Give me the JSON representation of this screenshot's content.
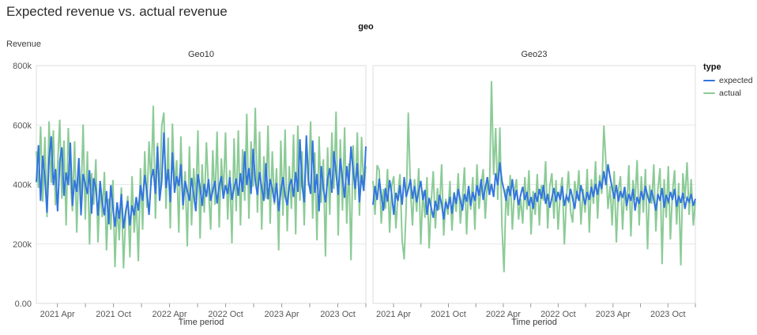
{
  "title": "Expected revenue vs. actual revenue",
  "legend": {
    "title": "type"
  },
  "colors": {
    "expected": "#3376de",
    "actual": "#8ccb97",
    "grid": "#e8e8e8",
    "border": "#dcdcdc",
    "tick": "#999999",
    "tick_label": "#565656"
  },
  "chart_data": {
    "type": "line",
    "title": "Expected revenue vs. actual revenue",
    "facet_field": "geo",
    "xlabel": "Time period",
    "ylabel": "Revenue",
    "x": {
      "start": "2021-01",
      "end": "2023-12",
      "interval": "weekly",
      "tick_labels": [
        "2021 Apr",
        "2021 Oct",
        "2022 Apr",
        "2022 Oct",
        "2023 Apr",
        "2023 Oct"
      ],
      "labeled_tick_months": [
        3,
        9,
        15,
        21,
        27,
        33
      ],
      "minor_tick_months": [
        6,
        12,
        18,
        24,
        30,
        36
      ]
    },
    "y": {
      "lim": [
        0,
        800000
      ],
      "tick_values": [
        0,
        200,
        400,
        600,
        800
      ],
      "tick_labels": [
        "0.00",
        "200k",
        "400k",
        "600k",
        "800k"
      ]
    },
    "values_unit": "thousands",
    "legend_position": "top-right",
    "grid": true,
    "panels": [
      {
        "name": "Geo10",
        "series": [
          {
            "name": "expected",
            "color": "#3376de",
            "values": [
              408,
              532,
              345,
              497,
              421,
              305,
              486,
              562,
              398,
              452,
              310,
              478,
              525,
              362,
              440,
              398,
              541,
              328,
              415,
              375,
              489,
              296,
              435,
              402,
              368,
              448,
              302,
              421,
              388,
              295,
              412,
              340,
              296,
              378,
              266,
              398,
              322,
              258,
              340,
              284,
              368,
              252,
              310,
              345,
              262,
              330,
              296,
              358,
              312,
              398,
              345,
              432,
              376,
              298,
              418,
              452,
              368,
              528,
              345,
              412,
              575,
              388,
              452,
              340,
              508,
              372,
              428,
              395,
              468,
              330,
              412,
              378,
              345,
              422,
              368,
              310,
              435,
              390,
              328,
              402,
              358,
              418,
              345,
              380,
              412,
              336,
              395,
              428,
              352,
              398,
              368,
              425,
              348,
              390,
              420,
              362,
              438,
              375,
              512,
              398,
              455,
              368,
              520,
              412,
              365,
              442,
              388,
              345,
              472,
              350,
              418,
              385,
              340,
              405,
              310,
              378,
              425,
              362,
              330,
              395,
              418,
              358,
              442,
              375,
              552,
              398,
              340,
              565,
              412,
              368,
              548,
              372,
              435,
              310,
              462,
              388,
              340,
              418,
              455,
              372,
              512,
              438,
              365,
              488,
              420,
              355,
              462,
              398,
              528,
              445,
              385,
              472,
              340,
              432,
              378,
              528
            ]
          },
          {
            "name": "actual",
            "color": "#8ccb97",
            "values": [
              512,
              388,
              595,
              342,
              560,
              290,
              612,
              405,
              582,
              330,
              465,
              618,
              352,
              548,
              262,
              590,
              415,
              310,
              545,
              238,
              478,
              345,
              602,
              282,
              512,
              198,
              438,
              332,
              485,
              205,
              398,
              290,
              442,
              178,
              352,
              248,
              415,
              122,
              338,
              212,
              390,
              118,
              295,
              362,
              155,
              428,
              238,
              348,
              142,
              455,
              248,
              512,
              322,
              545,
              398,
              665,
              285,
              540,
              362,
              598,
              642,
              318,
              558,
              252,
              605,
              390,
              482,
              238,
              562,
              315,
              445,
              192,
              528,
              262,
              455,
              348,
              582,
              218,
              468,
              305,
              542,
              385,
              248,
              515,
              332,
              578,
              255,
              488,
              368,
              575,
              282,
              448,
              202,
              555,
              310,
              582,
              262,
              518,
              345,
              638,
              285,
              545,
              392,
              658,
              305,
              578,
              248,
              495,
              352,
              598,
              268,
              512,
              332,
              455,
              178,
              548,
              295,
              585,
              242,
              462,
              318,
              568,
              232,
              598,
              345,
              512,
              262,
              545,
              395,
              612,
              285,
              508,
              212,
              562,
              338,
              485,
              158,
              525,
              298,
              575,
              385,
              645,
              228,
              552,
              312,
              592,
              268,
              472,
              145,
              532,
              348,
              575,
              295,
              560,
              385,
              462
            ]
          }
        ]
      },
      {
        "name": "Geo23",
        "series": [
          {
            "name": "expected",
            "color": "#3376de",
            "values": [
              332,
              395,
              348,
              420,
              365,
              312,
              388,
              342,
              415,
              368,
              298,
              372,
              345,
              398,
              332,
              425,
              358,
              385,
              418,
              352,
              395,
              340,
              378,
              412,
              348,
              382,
              298,
              355,
              322,
              288,
              345,
              312,
              365,
              335,
              282,
              342,
              318,
              358,
              302,
              372,
              335,
              385,
              348,
              312,
              368,
              342,
              395,
              328,
              375,
              345,
              398,
              362,
              418,
              348,
              388,
              425,
              365,
              402,
              358,
              438,
              398,
              475,
              412,
              382,
              345,
              395,
              362,
              418,
              348,
              382,
              330,
              365,
              392,
              348,
              375,
              328,
              358,
              318,
              372,
              342,
              385,
              352,
              398,
              335,
              368,
              322,
              355,
              388,
              342,
              375,
              348,
              395,
              328,
              362,
              345,
              385,
              352,
              318,
              378,
              345,
              398,
              362,
              332,
              375,
              348,
              392,
              358,
              402,
              365,
              412,
              385,
              445,
              398,
              468,
              425,
              388,
              352,
              398,
              342,
              378,
              355,
              392,
              328,
              368,
              345,
              385,
              312,
              358,
              335,
              378,
              348,
              395,
              362,
              338,
              382,
              348,
              312,
              368,
              345,
              388,
              322,
              365,
              342,
              375,
              348,
              385,
              325,
              362,
              338,
              372,
              318,
              355,
              342,
              368,
              328,
              352
            ]
          },
          {
            "name": "actual",
            "color": "#8ccb97",
            "values": [
              412,
              298,
              465,
              448,
              268,
              385,
              318,
              452,
              238,
              395,
              428,
              252,
              368,
              435,
              212,
              148,
              328,
              642,
              385,
              262,
              418,
              308,
              455,
              198,
              378,
              288,
              425,
              185,
              342,
              445,
              252,
              388,
              315,
              468,
              228,
              352,
              298,
              412,
              245,
              375,
              308,
              438,
              268,
              352,
              458,
              232,
              395,
              315,
              425,
              248,
              468,
              318,
              392,
              452,
              285,
              412,
              365,
              748,
              432,
              590,
              348,
              592,
              262,
              105,
              385,
              295,
              432,
              248,
              375,
              418,
              282,
              352,
              268,
              425,
              315,
              448,
              232,
              378,
              298,
              435,
              262,
              398,
              345,
              478,
              252,
              392,
              438,
              285,
              415,
              248,
              368,
              425,
              198,
              352,
              445,
              308,
              272,
              412,
              352,
              448,
              265,
              385,
              305,
              452,
              238,
              418,
              335,
              478,
              285,
              432,
              368,
              598,
              472,
              318,
              395,
              262,
              445,
              205,
              378,
              428,
              248,
              392,
              312,
              465,
              225,
              415,
              348,
              482,
              262,
              428,
              305,
              452,
              182,
              398,
              335,
              468,
              242,
              385,
              455,
              132,
              418,
              288,
              462,
              215,
              372,
              448,
              265,
              405,
              128,
              438,
              352,
              475,
              298,
              418,
              262,
              342
            ]
          }
        ]
      }
    ]
  }
}
